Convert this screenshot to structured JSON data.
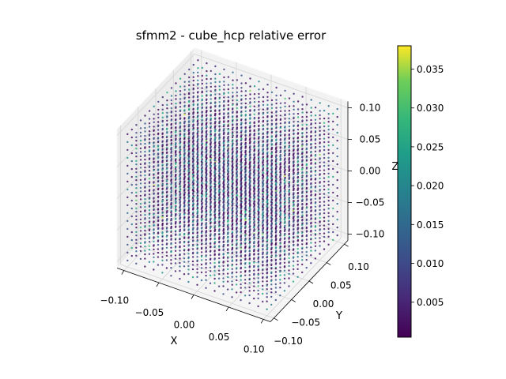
{
  "chart_data": {
    "type": "scatter3d",
    "title": "sfmm2 - cube_hcp relative error",
    "xlabel": "X",
    "ylabel": "Y",
    "zlabel": "Z",
    "xlim": [
      -0.11,
      0.11
    ],
    "ylim": [
      -0.11,
      0.11
    ],
    "zlim": [
      -0.11,
      0.11
    ],
    "xticks": [
      "−0.10",
      "−0.05",
      "0.00",
      "0.05",
      "0.10"
    ],
    "yticks": [
      "−0.10",
      "−0.05",
      "0.00",
      "0.05",
      "0.10"
    ],
    "zticks": [
      "−0.10",
      "−0.05",
      "0.00",
      "0.05",
      "0.10"
    ],
    "tick_values": [
      -0.1,
      -0.05,
      0,
      0.05,
      0.1
    ],
    "grid": true,
    "lattice": {
      "min": -0.1,
      "max": 0.1,
      "step": 0.0125
    },
    "colorbar": {
      "colormap": "viridis",
      "range": [
        0.0005,
        0.038
      ],
      "tick_values": [
        0.005,
        0.01,
        0.015,
        0.02,
        0.025,
        0.03,
        0.035
      ],
      "tick_labels": [
        "0.005",
        "0.010",
        "0.015",
        "0.020",
        "0.025",
        "0.030",
        "0.035"
      ]
    }
  }
}
